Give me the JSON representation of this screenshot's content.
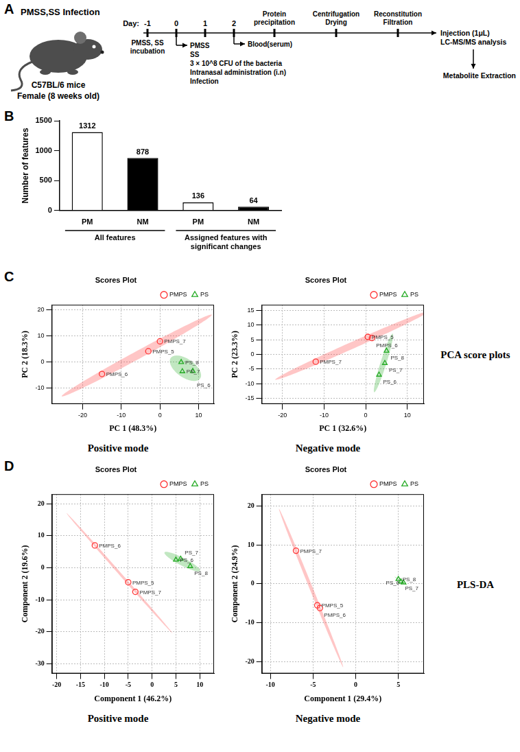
{
  "panel_a": {
    "letter": "A",
    "title": "PMSS,SS Infection",
    "subject": [
      "C57BL/6 mice",
      "Female (8 weeks old)"
    ],
    "timeline_label": "Day:",
    "days": [
      -1,
      0,
      1,
      2
    ],
    "incubation": {
      "day": -1,
      "text": "PMSS, SS incubation"
    },
    "infection": {
      "day": 0,
      "lines": [
        "PMSS",
        "SS",
        "3 × 10^8 CFU of the bacteria",
        "Intranasal administration (i.n)",
        "Infection"
      ]
    },
    "sampling": {
      "day": 2,
      "text": "Blood(serum)"
    },
    "steps": [
      [
        "Protein",
        "precipitation"
      ],
      [
        "Centrifugation",
        "Drying"
      ],
      [
        "Reconstitution",
        "Filtration"
      ]
    ],
    "analysis": [
      "Injection (1μL)",
      "LC-MS/MS analysis"
    ],
    "result": "Metabolite Extraction"
  },
  "row_labels": {
    "C": "PCA score plots",
    "D": "PLS-DA"
  },
  "chart_data": [
    {
      "panel": "B",
      "type": "bar",
      "categories": [
        "PM",
        "NM",
        "PM",
        "NM"
      ],
      "groups": [
        "All features",
        "All features",
        "Assigned features with significant changes",
        "Assigned features with significant changes"
      ],
      "values": [
        1312,
        878,
        136,
        64
      ],
      "colors": [
        "#ffffff",
        "#000000",
        "#ffffff",
        "#000000"
      ],
      "y_label": "Number of features",
      "ylim": [
        0,
        1500
      ],
      "yticks": [
        0,
        500,
        1000,
        1500
      ],
      "data_labels": true,
      "grid": false
    },
    {
      "panel": "C",
      "type": "scatter",
      "title": "Scores Plot",
      "subtitle": "Positive mode",
      "x_label": "PC 1 (48.3%)",
      "y_label": "PC 2 (18.3%)",
      "xlim": [
        -28,
        14
      ],
      "ylim": [
        -16,
        22
      ],
      "xticks": [
        -20,
        -10,
        0,
        10
      ],
      "yticks": [
        -10,
        0,
        10,
        20
      ],
      "grid": true,
      "legend": "top-right",
      "series": [
        {
          "name": "PMPS",
          "color": "#ff3333",
          "marker": "circle",
          "values": [
            [
              0,
              8
            ],
            [
              -3,
              4.2
            ],
            [
              -15,
              -4.5
            ]
          ],
          "labels": [
            "PMPS_7",
            "PMPS_5",
            "PMPS_6"
          ]
        },
        {
          "name": "PS",
          "color": "#22aa22",
          "marker": "triangle",
          "values": [
            [
              5.5,
              0
            ],
            [
              5.8,
              -3.5
            ],
            [
              8.5,
              -3.4
            ]
          ],
          "labels": [
            "PS_8",
            "PS_7",
            "PS_6"
          ]
        }
      ]
    },
    {
      "panel": "C",
      "type": "scatter",
      "title": "Scores Plot",
      "subtitle": "Negative mode",
      "x_label": "PC 1 (32.6%)",
      "y_label": "PC 2 (23.3%)",
      "xlim": [
        -25,
        14
      ],
      "ylim": [
        -17,
        17
      ],
      "xticks": [
        -20,
        -10,
        0,
        10
      ],
      "yticks": [
        -15,
        -10,
        -5,
        0,
        5,
        10,
        15
      ],
      "grid": true,
      "legend": "top-right",
      "series": [
        {
          "name": "PMPS",
          "color": "#ff3333",
          "marker": "circle",
          "values": [
            [
              0.5,
              6
            ],
            [
              1.5,
              5.6
            ],
            [
              -12,
              -2.5
            ]
          ],
          "labels": [
            "PMPS_5",
            "PMPS_6",
            "PMPS_7"
          ]
        },
        {
          "name": "PS",
          "color": "#22aa22",
          "marker": "triangle",
          "values": [
            [
              5,
              1.2
            ],
            [
              4.6,
              -3
            ],
            [
              3.2,
              -7
            ]
          ],
          "labels": [
            "PS_8",
            "PS_7",
            "PS_6"
          ]
        }
      ]
    },
    {
      "panel": "D",
      "type": "scatter",
      "title": "Scores Plot",
      "subtitle": "Positive mode",
      "x_label": "Component 1 (46.2%)",
      "y_label": "Component 2 (19.6%)",
      "xlim": [
        -21,
        13
      ],
      "ylim": [
        -33,
        23
      ],
      "xticks": [
        -20,
        -15,
        -10,
        -5,
        0,
        5,
        10
      ],
      "yticks": [
        -30,
        -20,
        -10,
        0,
        10,
        20
      ],
      "grid": true,
      "legend": "top-right",
      "series": [
        {
          "name": "PMPS",
          "color": "#ff3333",
          "marker": "circle",
          "values": [
            [
              -12,
              7
            ],
            [
              -5,
              -4.5
            ],
            [
              -3.5,
              -7.5
            ]
          ],
          "labels": [
            "PMPS_6",
            "PMPS_5",
            "PMPS_7"
          ]
        },
        {
          "name": "PS",
          "color": "#22aa22",
          "marker": "triangle",
          "values": [
            [
              5,
              2.5
            ],
            [
              6,
              2.8
            ],
            [
              8,
              0.5
            ]
          ],
          "labels": [
            "PS_6",
            "PS_7",
            "PS_8"
          ]
        }
      ]
    },
    {
      "panel": "D",
      "type": "scatter",
      "title": "Scores Plot",
      "subtitle": "Negative mode",
      "x_label": "Component 1 (29.4%)",
      "y_label": "Component 2 (24.9%)",
      "xlim": [
        -11,
        8
      ],
      "ylim": [
        -23,
        23
      ],
      "xticks": [
        -10,
        -5,
        0,
        5
      ],
      "yticks": [
        -20,
        -10,
        0,
        10,
        20
      ],
      "grid": true,
      "legend": "top-right",
      "series": [
        {
          "name": "PMPS",
          "color": "#ff3333",
          "marker": "circle",
          "values": [
            [
              -7,
              8.5
            ],
            [
              -4.5,
              -5.5
            ],
            [
              -4.2,
              -6.2
            ]
          ],
          "labels": [
            "PMPS_7",
            "PMPS_5",
            "PMPS_6"
          ]
        },
        {
          "name": "PS",
          "color": "#22aa22",
          "marker": "triangle",
          "values": [
            [
              5,
              1.2
            ],
            [
              5.3,
              0.6
            ],
            [
              5.6,
              0.3
            ]
          ],
          "labels": [
            "PS_8",
            "PS_7",
            "PS_6"
          ]
        }
      ]
    }
  ]
}
